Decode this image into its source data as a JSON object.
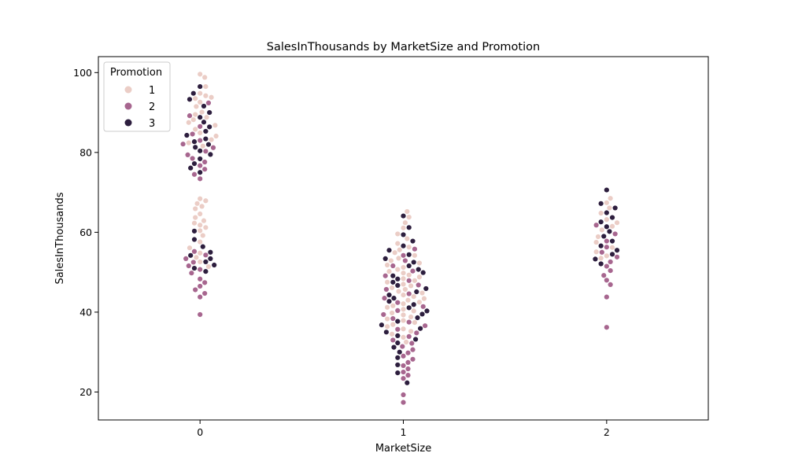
{
  "chart_data": {
    "type": "scatter",
    "subtype": "swarm",
    "title": "SalesInThousands by MarketSize and Promotion",
    "xlabel": "MarketSize",
    "ylabel": "SalesInThousands",
    "categories": [
      "0",
      "1",
      "2"
    ],
    "ylim": [
      13,
      104
    ],
    "yticks": [
      20,
      40,
      60,
      80,
      100
    ],
    "grid": false,
    "legend": {
      "title": "Promotion",
      "position": "top-left"
    },
    "series": [
      {
        "name": "1",
        "color": "#ebcdc6",
        "points": {
          "0": [
            99.6,
            98.8,
            96.5,
            94.8,
            94.2,
            93.8,
            93.5,
            92.6,
            91.5,
            90.1,
            89.5,
            88.8,
            88.2,
            87.5,
            86.8,
            85.8,
            84.9,
            84.1,
            83.2,
            82.4,
            81.6,
            68.4,
            67.9,
            67.2,
            66.5,
            65.9,
            64.6,
            63.7,
            62.9,
            62.3,
            61.8,
            61.2,
            60.4,
            59.2,
            57.6,
            56.1,
            54.8,
            53.7,
            52.6,
            51.4
          ],
          "1": [
            65.2,
            63.8,
            62.4,
            61.1,
            59.6,
            58.4,
            57.2,
            56.3,
            55.6,
            54.9,
            54.2,
            53.5,
            52.9,
            52.3,
            51.8,
            51.2,
            50.7,
            50.2,
            49.8,
            49.3,
            48.8,
            48.4,
            47.9,
            47.5,
            47.0,
            46.6,
            46.1,
            45.7,
            45.2,
            44.8,
            44.3,
            43.9,
            43.4,
            43.0,
            42.5,
            42.1,
            41.6,
            41.2,
            40.7,
            40.3,
            39.8,
            39.3,
            38.8,
            38.3,
            37.9,
            37.4,
            36.9,
            36.4,
            35.8,
            35.2,
            34.5,
            33.7,
            32.5
          ],
          "2": [
            68.5,
            67.4,
            66.1,
            64.8,
            63.2,
            62.4,
            61.5,
            60.6,
            58.9,
            57.5,
            56.2,
            55.1,
            54.1,
            53.5
          ]
        }
      },
      {
        "name": "2",
        "color": "#a7668f",
        "points": {
          "0": [
            92.4,
            89.2,
            86.5,
            84.6,
            83.0,
            82.1,
            81.2,
            80.3,
            79.4,
            78.5,
            77.6,
            76.7,
            75.8,
            74.5,
            73.4,
            55.2,
            54.3,
            53.4,
            52.5,
            51.6,
            50.7,
            49.8,
            48.3,
            47.4,
            46.5,
            45.6,
            44.7,
            43.8,
            39.4
          ],
          "1": [
            55.8,
            54.2,
            52.9,
            51.6,
            50.3,
            49.1,
            47.9,
            46.8,
            45.7,
            44.6,
            43.5,
            42.4,
            41.4,
            40.4,
            39.4,
            38.4,
            37.5,
            36.6,
            35.7,
            34.8,
            33.9,
            33.0,
            32.2,
            31.4,
            30.6,
            29.8,
            29.0,
            28.2,
            27.4,
            26.6,
            25.8,
            25.0,
            24.2,
            23.4,
            19.3,
            17.4
          ],
          "2": [
            61.8,
            59.6,
            57.8,
            56.3,
            55.0,
            53.8,
            52.6,
            51.5,
            50.4,
            49.2,
            48.0,
            46.9,
            43.8,
            36.2
          ]
        }
      },
      {
        "name": "3",
        "color": "#2d1e3e",
        "points": {
          "0": [
            96.5,
            94.8,
            93.3,
            91.6,
            90.0,
            88.8,
            87.6,
            86.4,
            85.3,
            84.3,
            83.4,
            82.7,
            82.0,
            81.3,
            80.4,
            79.5,
            78.4,
            77.2,
            76.1,
            75.0,
            60.3,
            58.2,
            56.4,
            55.0,
            54.2,
            53.4,
            52.6,
            51.8,
            51.0,
            50.2
          ],
          "1": [
            64.1,
            61.2,
            59.4,
            57.8,
            56.6,
            55.5,
            54.4,
            53.4,
            52.5,
            51.6,
            50.7,
            49.9,
            49.1,
            48.3,
            47.5,
            46.7,
            45.9,
            45.1,
            44.3,
            43.5,
            42.7,
            41.9,
            41.1,
            40.3,
            39.5,
            38.6,
            37.7,
            36.8,
            35.9,
            35.0,
            34.1,
            33.2,
            32.3,
            31.2,
            30.0,
            28.6,
            26.8,
            24.8,
            22.3
          ],
          "2": [
            70.6,
            67.2,
            66.1,
            64.9,
            63.7,
            62.6,
            61.4,
            60.2,
            59.0,
            57.8,
            56.6,
            55.5,
            54.5,
            53.3,
            52.1
          ]
        }
      }
    ]
  }
}
